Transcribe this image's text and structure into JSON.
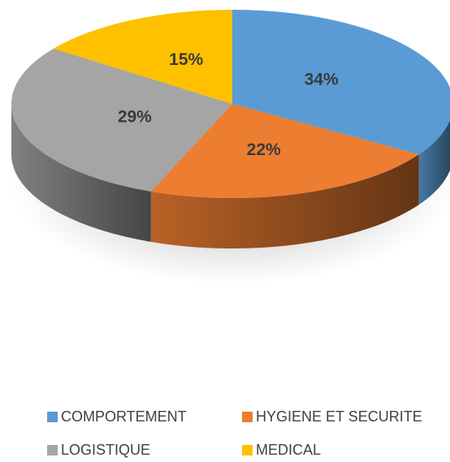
{
  "chart_data": {
    "type": "pie",
    "style": "3d",
    "categories": [
      "COMPORTEMENT",
      "HYGIENE ET SECURITE",
      "LOGISTIQUE",
      "MEDICAL"
    ],
    "values": [
      34,
      22,
      29,
      15
    ],
    "labels": [
      "34%",
      "22%",
      "29%",
      "15%"
    ],
    "colors": [
      "#5b9bd5",
      "#ed7d31",
      "#a5a5a5",
      "#ffc000"
    ],
    "legend_placement": "bottom",
    "title": ""
  },
  "legend": {
    "items": [
      {
        "label": "COMPORTEMENT",
        "color": "#5b9bd5"
      },
      {
        "label": "HYGIENE ET SECURITE",
        "color": "#ed7d31"
      },
      {
        "label": "LOGISTIQUE",
        "color": "#a5a5a5"
      },
      {
        "label": "MEDICAL",
        "color": "#ffc000"
      }
    ]
  }
}
